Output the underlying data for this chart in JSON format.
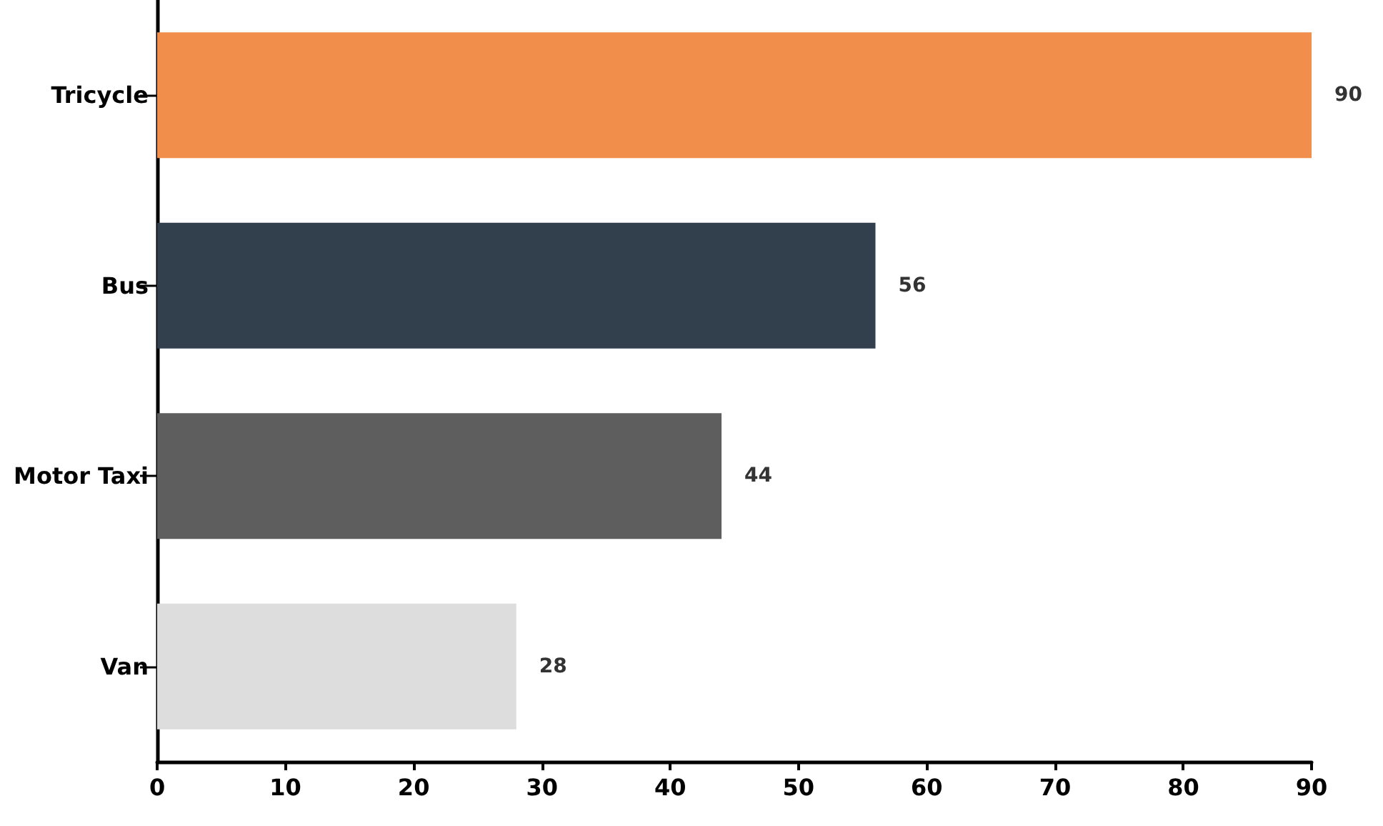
{
  "chart_data": {
    "type": "bar",
    "orientation": "horizontal",
    "categories": [
      "Tricycle",
      "Bus",
      "Motor Taxi",
      "Van"
    ],
    "values": [
      90,
      56,
      44,
      28
    ],
    "colors": [
      "#f28e4c",
      "#323f4d",
      "#5e5e5e",
      "#dddddd"
    ],
    "xlim": [
      0,
      90
    ],
    "xticks": [
      0,
      10,
      20,
      30,
      40,
      50,
      60,
      70,
      80,
      90
    ],
    "grid": false,
    "data_labels": true
  }
}
